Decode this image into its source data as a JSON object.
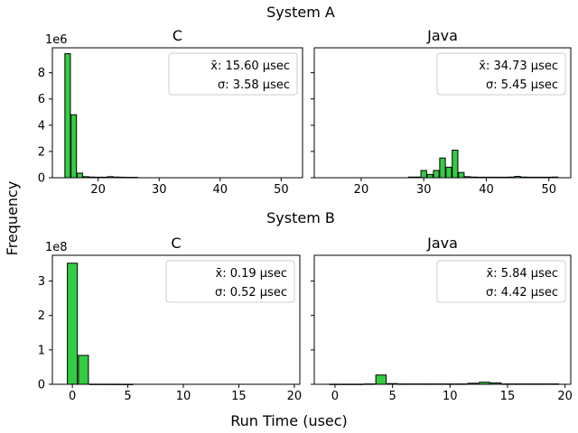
{
  "figure": {
    "ylabel": "Frequency",
    "xlabel": "Run Time (usec)",
    "rows": [
      {
        "title": "System A"
      },
      {
        "title": "System B"
      }
    ]
  },
  "chart_data": [
    {
      "type": "bar",
      "title": "C",
      "row_title": "System A",
      "multiplier": "1e6",
      "xlim": [
        12.5,
        53.5
      ],
      "ylim": [
        0,
        9.9
      ],
      "xticks": [
        20,
        30,
        40,
        50
      ],
      "yticks": [
        0,
        2,
        4,
        6,
        8
      ],
      "bar_width": 0.9,
      "x": [
        15,
        16,
        17,
        18,
        19,
        20,
        21,
        22,
        23,
        24,
        25,
        26
      ],
      "values": [
        9.45,
        4.8,
        0.35,
        0.08,
        0.05,
        0.04,
        0.04,
        0.08,
        0.05,
        0.04,
        0.03,
        0.03
      ],
      "legend": [
        "x̄: 15.60 µsec",
        "σ: 3.58 µsec"
      ]
    },
    {
      "type": "bar",
      "title": "Java",
      "row_title": "System A",
      "multiplier": "",
      "xlim": [
        12.5,
        53.5
      ],
      "ylim": [
        0,
        9.9
      ],
      "xticks": [
        20,
        30,
        40,
        50
      ],
      "yticks": [
        0,
        2,
        4,
        6,
        8
      ],
      "bar_width": 0.9,
      "x": [
        28,
        29,
        30,
        31,
        32,
        33,
        34,
        35,
        36,
        37,
        38,
        39,
        40,
        41,
        42,
        43,
        44,
        45,
        46,
        47,
        48,
        49,
        50,
        51
      ],
      "values": [
        0.05,
        0.05,
        0.55,
        0.25,
        0.55,
        1.5,
        0.8,
        2.1,
        0.4,
        0.08,
        0.05,
        0.04,
        0.04,
        0.04,
        0.04,
        0.04,
        0.05,
        0.1,
        0.05,
        0.04,
        0.04,
        0.04,
        0.04,
        0.05
      ],
      "legend": [
        "x̄: 34.73 µsec",
        "σ: 5.45 µsec"
      ]
    },
    {
      "type": "bar",
      "title": "C",
      "row_title": "System B",
      "multiplier": "1e8",
      "xlim": [
        -1.8,
        20.5
      ],
      "ylim": [
        0,
        3.75
      ],
      "xticks": [
        0,
        5,
        10,
        15,
        20
      ],
      "yticks": [
        0,
        1,
        2,
        3
      ],
      "bar_width": 0.9,
      "x": [
        0,
        1,
        2,
        3,
        4,
        5
      ],
      "values": [
        3.52,
        0.84,
        0.004,
        0.003,
        0.003,
        0.002
      ],
      "legend": [
        "x̄: 0.19 µsec",
        "σ: 0.52 µsec"
      ]
    },
    {
      "type": "bar",
      "title": "Java",
      "row_title": "System B",
      "multiplier": "",
      "xlim": [
        -1.8,
        20.5
      ],
      "ylim": [
        0,
        3.75
      ],
      "xticks": [
        0,
        5,
        10,
        15,
        20
      ],
      "yticks": [
        0,
        1,
        2,
        3
      ],
      "bar_width": 0.9,
      "x": [
        0,
        1,
        2,
        3,
        4,
        5,
        6,
        7,
        8,
        9,
        10,
        11,
        12,
        13,
        14,
        15,
        16,
        17,
        18,
        19
      ],
      "values": [
        0.004,
        0.004,
        0.004,
        0.01,
        0.27,
        0.02,
        0.01,
        0.01,
        0.01,
        0.01,
        0.01,
        0.01,
        0.03,
        0.06,
        0.04,
        0.01,
        0.01,
        0.01,
        0.01,
        0.01
      ],
      "legend": [
        "x̄: 5.84 µsec",
        "σ: 4.42 µsec"
      ]
    }
  ]
}
